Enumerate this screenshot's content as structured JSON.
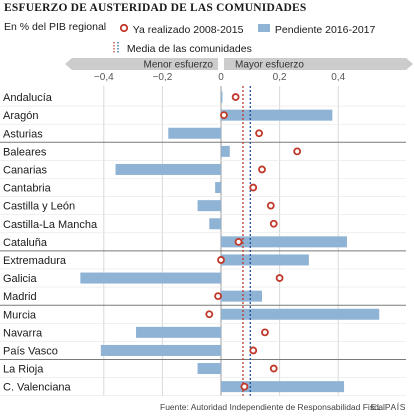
{
  "title": "ESFUERZO DE AUSTERIDAD DE LAS COMUNIDADES",
  "subtitle": "En % del PIB regional",
  "footer": {
    "source": "Fuente: Autoridad Independiente de Responsabilidad Fiscal.",
    "brand": "EL PAÍS"
  },
  "colors": {
    "bar": "#8fb3d4",
    "marker": "#c0392b",
    "media_line": "#1f4fa0",
    "grid": "#d8d8d8",
    "label_band": "#cccccc",
    "separator": "#7a7a7a"
  },
  "chart_data": {
    "type": "bar",
    "orientation": "horizontal",
    "title": "ESFUERZO DE AUSTERIDAD DE LAS COMUNIDADES",
    "subtitle": "En % del PIB regional",
    "xlim": [
      -0.5,
      0.55
    ],
    "xticks": [
      -0.4,
      -0.2,
      0,
      0.2,
      0.4
    ],
    "xtick_labels": [
      "−0,4",
      "−0,2",
      "0",
      "0,2",
      "0,4"
    ],
    "direction_labels": {
      "left": "Menor esfuerzo",
      "right": "Mayor esfuerzo"
    },
    "grid": true,
    "legend_placement": "top",
    "categories": [
      "Andalucía",
      "Aragón",
      "Asturias",
      "Baleares",
      "Canarias",
      "Cantabria",
      "Castilla y León",
      "Castilla-La Mancha",
      "Cataluña",
      "Extremadura",
      "Galicia",
      "Madrid",
      "Murcia",
      "Navarra",
      "País Vasco",
      "La Rioja",
      "C. Valenciana"
    ],
    "series": [
      {
        "name": "Pendiente 2016-2017",
        "type": "bar",
        "values": [
          0.005,
          0.38,
          -0.18,
          0.03,
          -0.36,
          -0.02,
          -0.08,
          -0.04,
          0.43,
          0.3,
          -0.48,
          0.14,
          0.54,
          -0.29,
          -0.41,
          -0.08,
          0.42
        ]
      },
      {
        "name": "Ya realizado 2008-2015",
        "type": "marker",
        "values": [
          0.05,
          0.01,
          0.13,
          0.26,
          0.14,
          0.11,
          0.17,
          0.18,
          0.06,
          0.0,
          0.2,
          -0.01,
          -0.04,
          0.15,
          0.11,
          0.18,
          0.08
        ]
      }
    ],
    "reference_lines": [
      {
        "name": "Media de las comunidades",
        "x": [
          0.075,
          0.1
        ],
        "style": "dotted"
      }
    ],
    "group_separators_after": [
      "Asturias",
      "Cataluña",
      "Madrid",
      "País Vasco"
    ]
  }
}
